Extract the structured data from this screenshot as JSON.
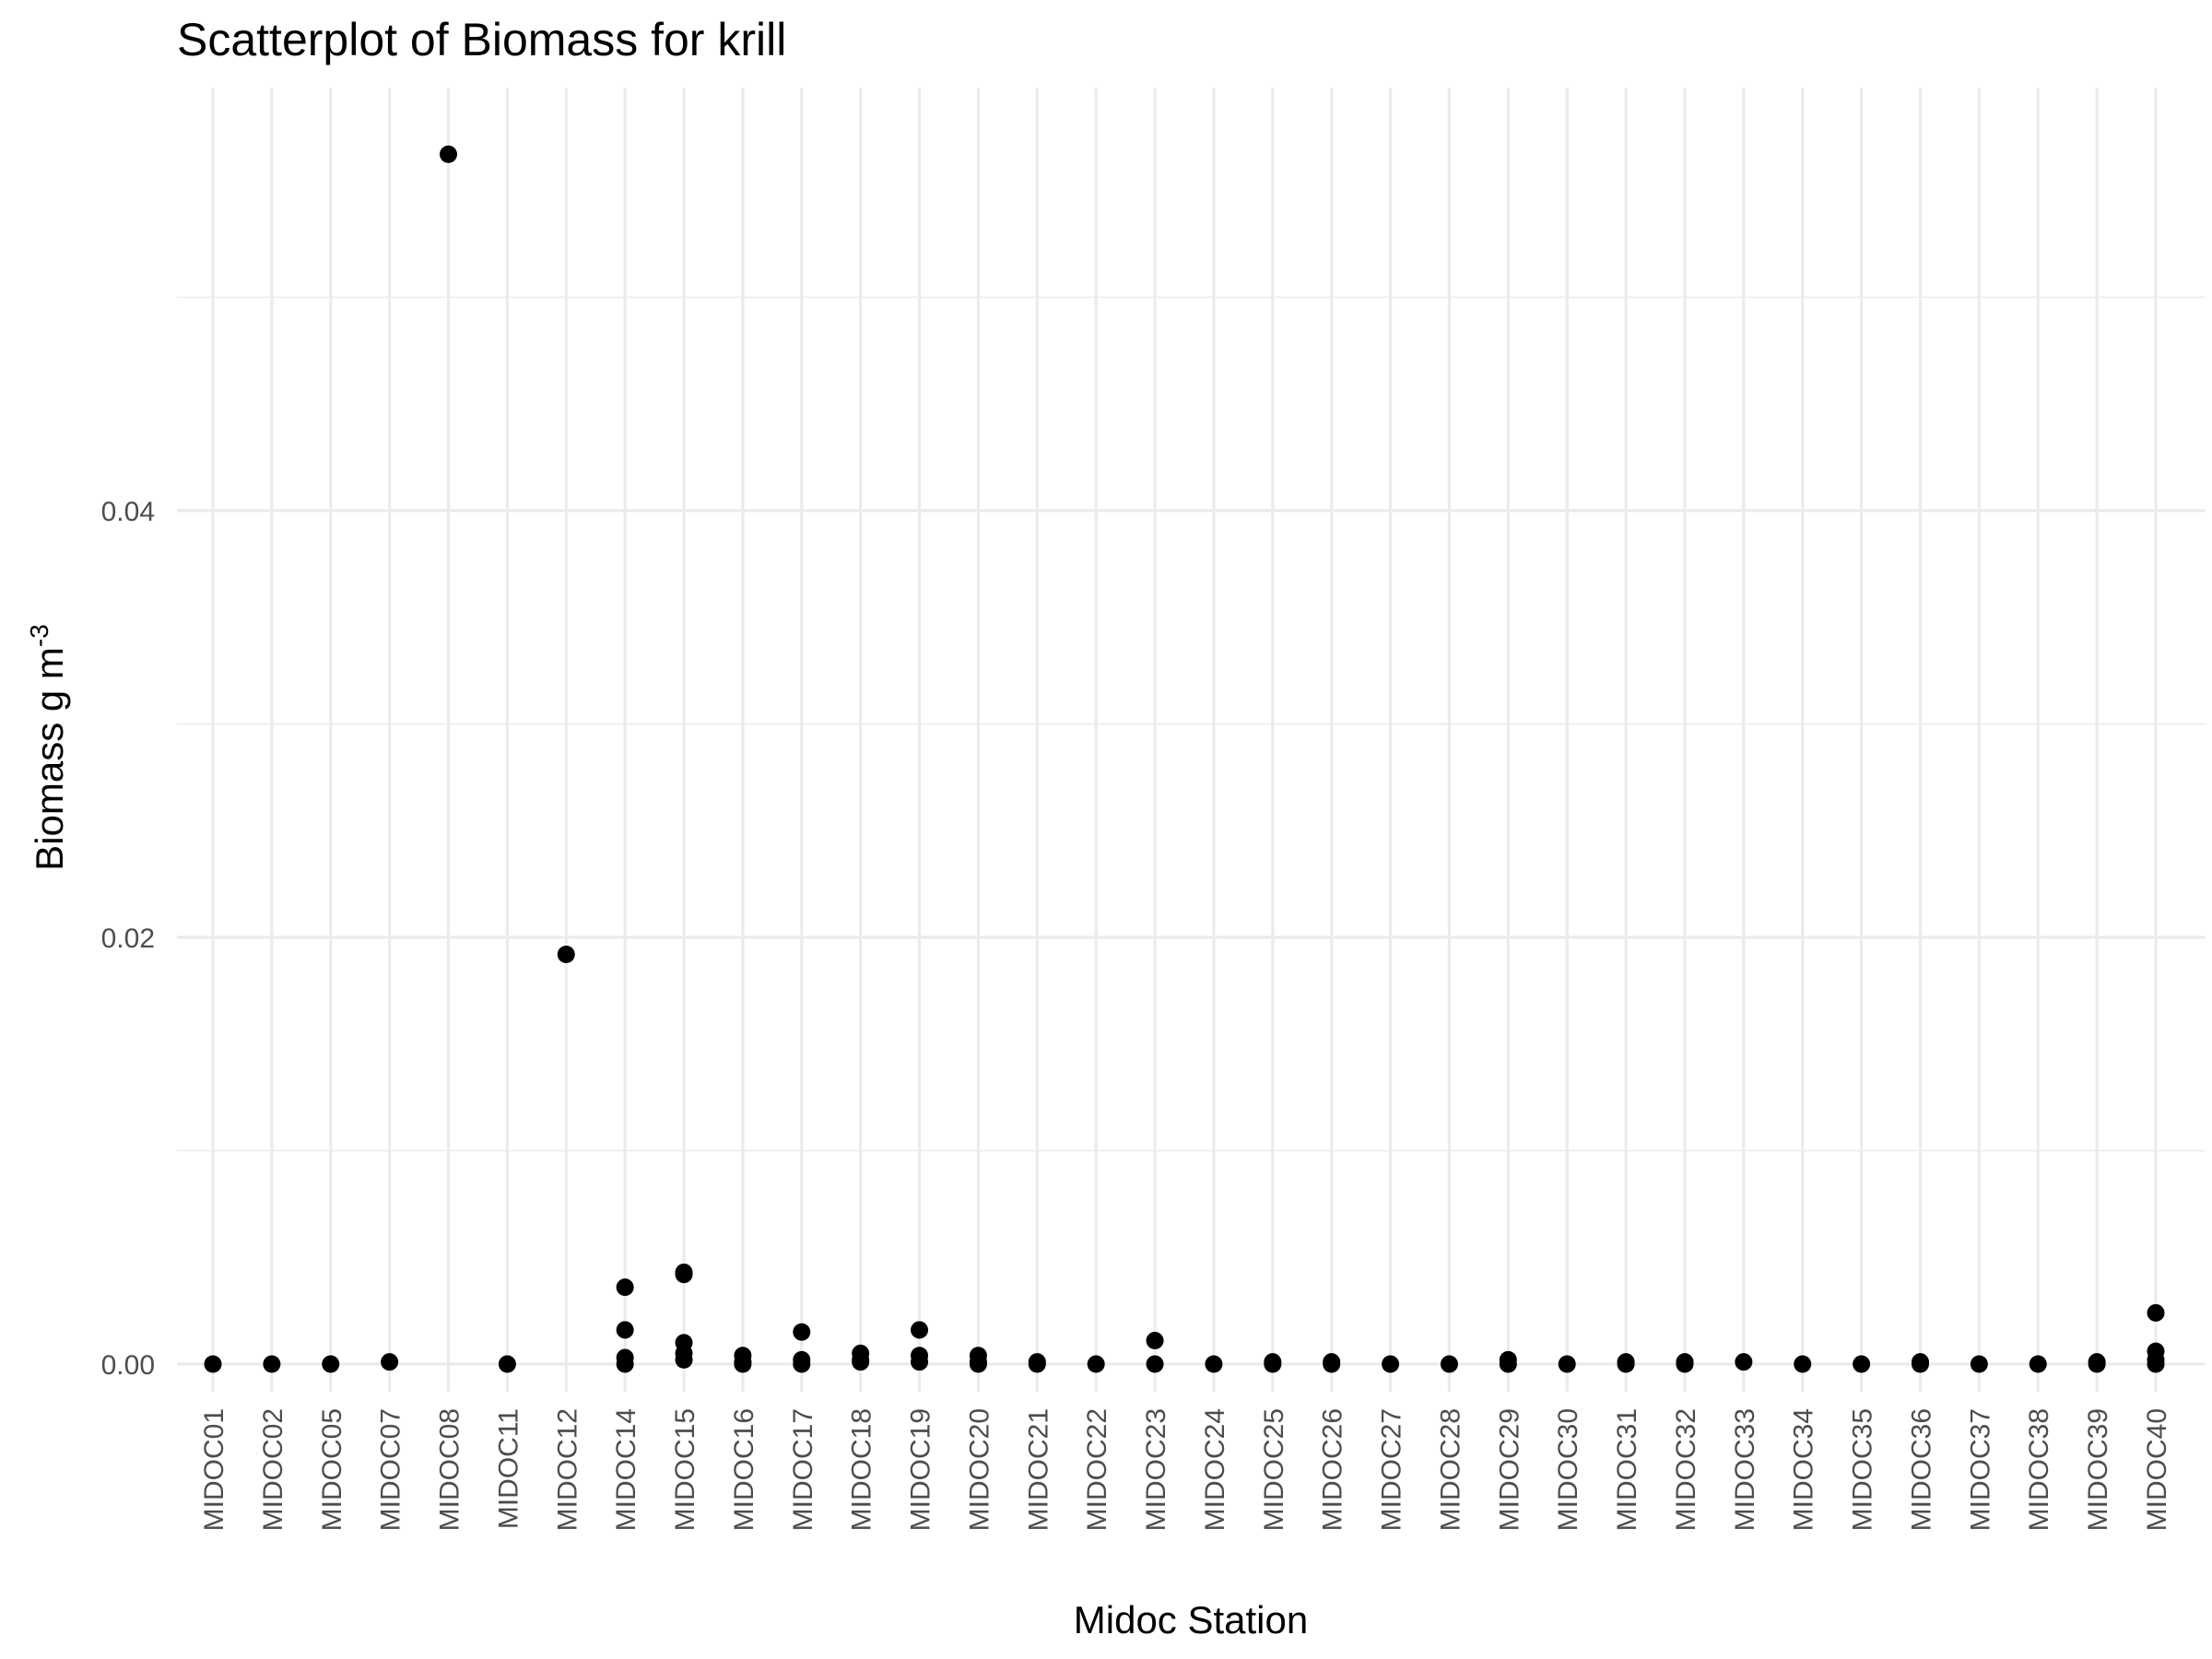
{
  "chart_data": {
    "type": "scatter",
    "title": "Scatterplot of Biomass for krill",
    "xlabel": "Midoc Station",
    "ylabel": "Biomass g m",
    "ylabel_superscript": "-3",
    "ylim": [
      -0.003,
      0.0565
    ],
    "y_ticks": [
      0.0,
      0.02,
      0.04
    ],
    "y_tick_labels": [
      "0.00",
      "0.02",
      "0.04"
    ],
    "grid": true,
    "categories": [
      "MIDOC01",
      "MIDOC02",
      "MIDOC05",
      "MIDOC07",
      "MIDOC08",
      "MIDOC11",
      "MIDOC12",
      "MIDOC14",
      "MIDOC15",
      "MIDOC16",
      "MIDOC17",
      "MIDOC18",
      "MIDOC19",
      "MIDOC20",
      "MIDOC21",
      "MIDOC22",
      "MIDOC23",
      "MIDOC24",
      "MIDOC25",
      "MIDOC26",
      "MIDOC27",
      "MIDOC28",
      "MIDOC29",
      "MIDOC30",
      "MIDOC31",
      "MIDOC32",
      "MIDOC33",
      "MIDOC34",
      "MIDOC35",
      "MIDOC36",
      "MIDOC37",
      "MIDOC38",
      "MIDOC39",
      "MIDOC40"
    ],
    "points": [
      {
        "x": "MIDOC01",
        "y": 0.0
      },
      {
        "x": "MIDOC02",
        "y": 0.0
      },
      {
        "x": "MIDOC05",
        "y": 0.0
      },
      {
        "x": "MIDOC07",
        "y": 0.0001
      },
      {
        "x": "MIDOC08",
        "y": 0.0567
      },
      {
        "x": "MIDOC11",
        "y": 0.0
      },
      {
        "x": "MIDOC12",
        "y": 0.0192
      },
      {
        "x": "MIDOC14",
        "y": 0.0036
      },
      {
        "x": "MIDOC14",
        "y": 0.0016
      },
      {
        "x": "MIDOC14",
        "y": 0.0003
      },
      {
        "x": "MIDOC14",
        "y": 0.0
      },
      {
        "x": "MIDOC15",
        "y": 0.0043
      },
      {
        "x": "MIDOC15",
        "y": 0.0042
      },
      {
        "x": "MIDOC15",
        "y": 0.001
      },
      {
        "x": "MIDOC15",
        "y": 0.0005
      },
      {
        "x": "MIDOC15",
        "y": 0.0002
      },
      {
        "x": "MIDOC16",
        "y": 0.0004
      },
      {
        "x": "MIDOC16",
        "y": 0.0001
      },
      {
        "x": "MIDOC16",
        "y": 0.0
      },
      {
        "x": "MIDOC17",
        "y": 0.0015
      },
      {
        "x": "MIDOC17",
        "y": 0.0002
      },
      {
        "x": "MIDOC17",
        "y": 0.0
      },
      {
        "x": "MIDOC18",
        "y": 0.0005
      },
      {
        "x": "MIDOC18",
        "y": 0.0002
      },
      {
        "x": "MIDOC18",
        "y": 0.0001
      },
      {
        "x": "MIDOC19",
        "y": 0.0016
      },
      {
        "x": "MIDOC19",
        "y": 0.0004
      },
      {
        "x": "MIDOC19",
        "y": 0.0001
      },
      {
        "x": "MIDOC20",
        "y": 0.0004
      },
      {
        "x": "MIDOC20",
        "y": 0.0001
      },
      {
        "x": "MIDOC20",
        "y": 0.0
      },
      {
        "x": "MIDOC21",
        "y": 0.0001
      },
      {
        "x": "MIDOC21",
        "y": 0.0
      },
      {
        "x": "MIDOC22",
        "y": 0.0
      },
      {
        "x": "MIDOC23",
        "y": 0.0011
      },
      {
        "x": "MIDOC23",
        "y": 0.0
      },
      {
        "x": "MIDOC24",
        "y": 0.0
      },
      {
        "x": "MIDOC25",
        "y": 0.0001
      },
      {
        "x": "MIDOC25",
        "y": 0.0
      },
      {
        "x": "MIDOC26",
        "y": 0.0001
      },
      {
        "x": "MIDOC26",
        "y": 0.0
      },
      {
        "x": "MIDOC27",
        "y": 0.0
      },
      {
        "x": "MIDOC28",
        "y": 0.0
      },
      {
        "x": "MIDOC29",
        "y": 0.0002
      },
      {
        "x": "MIDOC29",
        "y": 0.0
      },
      {
        "x": "MIDOC30",
        "y": 0.0
      },
      {
        "x": "MIDOC31",
        "y": 0.0001
      },
      {
        "x": "MIDOC31",
        "y": 0.0
      },
      {
        "x": "MIDOC32",
        "y": 0.0001
      },
      {
        "x": "MIDOC32",
        "y": 0.0
      },
      {
        "x": "MIDOC33",
        "y": 0.0001
      },
      {
        "x": "MIDOC34",
        "y": 0.0
      },
      {
        "x": "MIDOC35",
        "y": 0.0
      },
      {
        "x": "MIDOC36",
        "y": 0.0001
      },
      {
        "x": "MIDOC36",
        "y": 0.0
      },
      {
        "x": "MIDOC37",
        "y": 0.0
      },
      {
        "x": "MIDOC38",
        "y": 0.0
      },
      {
        "x": "MIDOC39",
        "y": 0.0001
      },
      {
        "x": "MIDOC39",
        "y": 0.0
      },
      {
        "x": "MIDOC40",
        "y": 0.0024
      },
      {
        "x": "MIDOC40",
        "y": 0.0006
      },
      {
        "x": "MIDOC40",
        "y": 0.0002
      },
      {
        "x": "MIDOC40",
        "y": 0.0
      }
    ]
  }
}
